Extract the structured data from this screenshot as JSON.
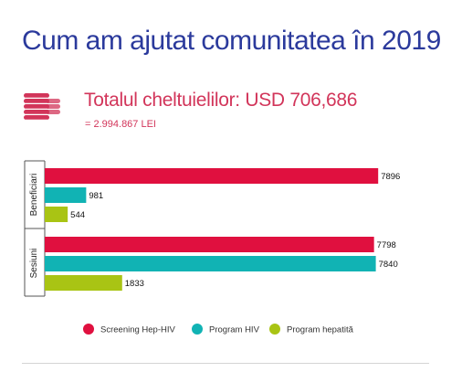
{
  "header": {
    "title": "Cum am ajutat comunitatea în 2019",
    "total_label": "Totalul cheltuielilor: USD 706,686",
    "total_lei": "= 2.994.867 LEI"
  },
  "icon": {
    "name": "coins-stack-icon",
    "color": "#d2355a"
  },
  "colors": {
    "title": "#2b3a9c",
    "accent": "#d2355a",
    "screening": "#e0103f",
    "hiv": "#11b3b4",
    "hepatita": "#a9c414",
    "text": "#222222"
  },
  "chart_data": {
    "type": "bar",
    "orientation": "horizontal",
    "categories": [
      "Beneficiari",
      "Sesiuni"
    ],
    "series": [
      {
        "name": "Screening Hep-HIV",
        "values": [
          7896,
          7798
        ]
      },
      {
        "name": "Program HIV",
        "values": [
          981,
          7840
        ]
      },
      {
        "name": "Program hepatită",
        "values": [
          544,
          1833
        ]
      }
    ],
    "xlim": [
      0,
      8000
    ],
    "legend": [
      "Screening Hep-HIV",
      "Program HIV",
      "Program hepatită"
    ],
    "legend_position": "bottom",
    "grid": false
  }
}
